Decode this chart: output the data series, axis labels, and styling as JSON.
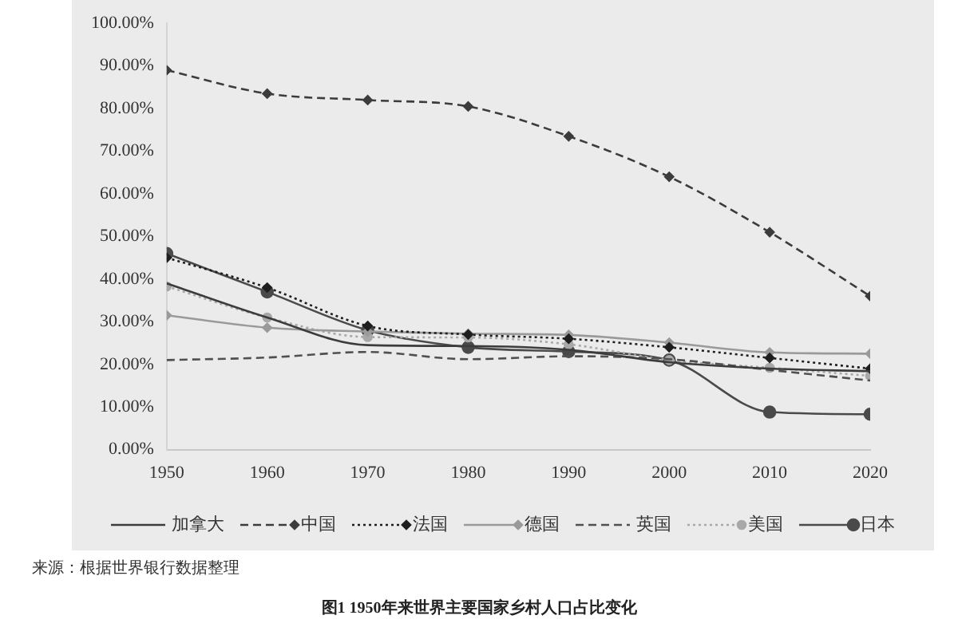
{
  "chart_data": {
    "type": "line",
    "title": "图1  1950年来世界主要国家乡村人口占比变化",
    "annotations": [
      "来源：根据世界银行数据整理"
    ],
    "x": [
      1950,
      1960,
      1970,
      1980,
      1990,
      2000,
      2010,
      2020
    ],
    "xlim": [
      1950,
      2020
    ],
    "xticks": [
      1950,
      1960,
      1970,
      1980,
      1990,
      2000,
      2010,
      2020
    ],
    "ylim": [
      0,
      100
    ],
    "yticks": [
      {
        "value": 0,
        "label": "0.00%"
      },
      {
        "value": 10,
        "label": "10.00%"
      },
      {
        "value": 20,
        "label": "20.00%"
      },
      {
        "value": 30,
        "label": "30.00%"
      },
      {
        "value": 40,
        "label": "40.00%"
      },
      {
        "value": 50,
        "label": "50.00%"
      },
      {
        "value": 60,
        "label": "60.00%"
      },
      {
        "value": 70,
        "label": "70.00%"
      },
      {
        "value": 80,
        "label": "80.00%"
      },
      {
        "value": 90,
        "label": "90.00%"
      },
      {
        "value": 100,
        "label": "100.00%"
      }
    ],
    "grid": false,
    "legend": "bottom",
    "series": [
      {
        "name": "加拿大",
        "color": "#3c3c3c",
        "line_style": "solid",
        "marker": "none",
        "values": [
          39,
          31,
          24.5,
          24.3,
          23.4,
          20.5,
          19,
          18.4
        ]
      },
      {
        "name": "中国",
        "color": "#3c3c3c",
        "line_style": "dashed",
        "marker": "diamond",
        "values": [
          89,
          83.5,
          82,
          80.5,
          73.5,
          64,
          51,
          36
        ]
      },
      {
        "name": "法国",
        "color": "#1e1e1e",
        "line_style": "dotted",
        "marker": "diamond",
        "values": [
          45,
          38,
          29,
          27,
          26,
          24,
          21.5,
          19
        ]
      },
      {
        "name": "德国",
        "color": "#9a9a9a",
        "line_style": "solid",
        "marker": "diamond",
        "values": [
          31.5,
          28.6,
          27.7,
          27.2,
          26.9,
          25.1,
          22.8,
          22.5
        ]
      },
      {
        "name": "英国",
        "color": "#505050",
        "line_style": "dashed",
        "marker": "none",
        "values": [
          21,
          21.6,
          22.9,
          21.2,
          21.9,
          21.2,
          18.7,
          16.2
        ]
      },
      {
        "name": "美国",
        "color": "#a8a8a8",
        "line_style": "dotted",
        "marker": "circle",
        "values": [
          38.3,
          31,
          26.4,
          26.3,
          24.7,
          21,
          19.2,
          17.3
        ]
      },
      {
        "name": "日本",
        "color": "#4a4a4a",
        "line_style": "solid",
        "marker": "circle",
        "values": [
          46,
          37,
          28,
          24,
          23,
          21,
          8.8,
          8.3
        ]
      }
    ]
  }
}
